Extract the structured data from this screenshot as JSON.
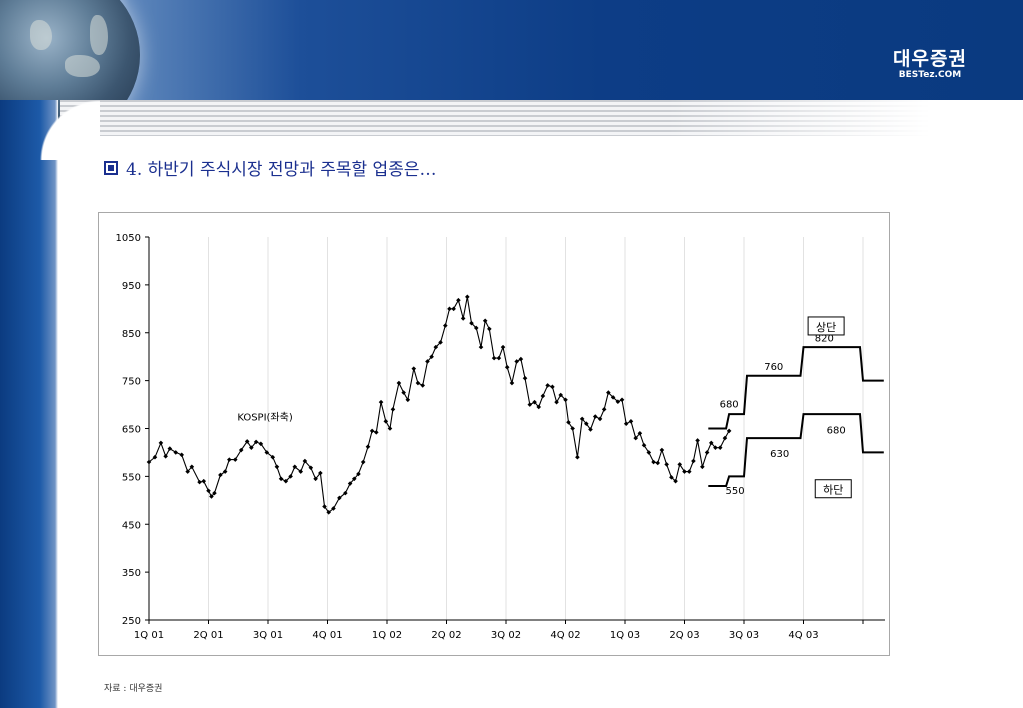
{
  "header": {
    "logo_main": "대우증권",
    "logo_sub": "BESTez.COM"
  },
  "slide": {
    "title": "4. 하반기 주식시장 전망과 주목할 업종은…",
    "source": "자료 : 대우증권"
  },
  "chart_data": {
    "type": "line",
    "ylim": [
      250,
      1050
    ],
    "yticks": [
      250,
      350,
      450,
      550,
      650,
      750,
      850,
      950,
      1050
    ],
    "xlim": [
      0,
      12.4
    ],
    "xticks": [
      {
        "label": "1Q 01",
        "pos": 0
      },
      {
        "label": "2Q 01",
        "pos": 1
      },
      {
        "label": "3Q 01",
        "pos": 2
      },
      {
        "label": "4Q 01",
        "pos": 3
      },
      {
        "label": "1Q 02",
        "pos": 4
      },
      {
        "label": "2Q 02",
        "pos": 5
      },
      {
        "label": "3Q 02",
        "pos": 6
      },
      {
        "label": "4Q 02",
        "pos": 7
      },
      {
        "label": "1Q 03",
        "pos": 8
      },
      {
        "label": "2Q 03",
        "pos": 9
      },
      {
        "label": "3Q 03",
        "pos": 10
      },
      {
        "label": "4Q 03",
        "pos": 11
      }
    ],
    "grid": "vertical",
    "series": [
      {
        "name": "KOSPI(좌축)",
        "label_pos": [
          1.95,
          667
        ],
        "points": [
          [
            0.0,
            580
          ],
          [
            0.1,
            590
          ],
          [
            0.2,
            620
          ],
          [
            0.28,
            592
          ],
          [
            0.35,
            608
          ],
          [
            0.45,
            600
          ],
          [
            0.55,
            595
          ],
          [
            0.65,
            560
          ],
          [
            0.72,
            570
          ],
          [
            0.85,
            538
          ],
          [
            0.92,
            540
          ],
          [
            1.0,
            520
          ],
          [
            1.05,
            508
          ],
          [
            1.1,
            515
          ],
          [
            1.2,
            553
          ],
          [
            1.28,
            560
          ],
          [
            1.35,
            585
          ],
          [
            1.45,
            585
          ],
          [
            1.55,
            605
          ],
          [
            1.65,
            623
          ],
          [
            1.72,
            610
          ],
          [
            1.8,
            622
          ],
          [
            1.88,
            618
          ],
          [
            1.98,
            600
          ],
          [
            2.08,
            590
          ],
          [
            2.15,
            570
          ],
          [
            2.22,
            545
          ],
          [
            2.3,
            540
          ],
          [
            2.38,
            550
          ],
          [
            2.45,
            570
          ],
          [
            2.55,
            560
          ],
          [
            2.62,
            582
          ],
          [
            2.72,
            568
          ],
          [
            2.8,
            545
          ],
          [
            2.88,
            557
          ],
          [
            2.95,
            487
          ],
          [
            3.02,
            475
          ],
          [
            3.1,
            483
          ],
          [
            3.2,
            505
          ],
          [
            3.3,
            515
          ],
          [
            3.38,
            535
          ],
          [
            3.45,
            545
          ],
          [
            3.52,
            555
          ],
          [
            3.6,
            580
          ],
          [
            3.68,
            612
          ],
          [
            3.75,
            645
          ],
          [
            3.82,
            642
          ],
          [
            3.9,
            705
          ],
          [
            3.98,
            665
          ],
          [
            4.05,
            650
          ],
          [
            4.1,
            690
          ],
          [
            4.2,
            745
          ],
          [
            4.28,
            725
          ],
          [
            4.35,
            710
          ],
          [
            4.45,
            775
          ],
          [
            4.52,
            745
          ],
          [
            4.6,
            740
          ],
          [
            4.68,
            790
          ],
          [
            4.75,
            800
          ],
          [
            4.82,
            820
          ],
          [
            4.9,
            830
          ],
          [
            4.98,
            865
          ],
          [
            5.05,
            900
          ],
          [
            5.12,
            900
          ],
          [
            5.2,
            918
          ],
          [
            5.28,
            880
          ],
          [
            5.35,
            925
          ],
          [
            5.42,
            870
          ],
          [
            5.5,
            860
          ],
          [
            5.58,
            820
          ],
          [
            5.65,
            875
          ],
          [
            5.72,
            858
          ],
          [
            5.8,
            797
          ],
          [
            5.88,
            797
          ],
          [
            5.95,
            820
          ],
          [
            6.02,
            778
          ],
          [
            6.1,
            745
          ],
          [
            6.18,
            790
          ],
          [
            6.25,
            795
          ],
          [
            6.32,
            755
          ],
          [
            6.4,
            700
          ],
          [
            6.48,
            705
          ],
          [
            6.55,
            695
          ],
          [
            6.62,
            718
          ],
          [
            6.7,
            740
          ],
          [
            6.78,
            737
          ],
          [
            6.85,
            705
          ],
          [
            6.92,
            720
          ],
          [
            7.0,
            710
          ],
          [
            7.05,
            663
          ],
          [
            7.12,
            650
          ],
          [
            7.2,
            590
          ],
          [
            7.28,
            670
          ],
          [
            7.35,
            660
          ],
          [
            7.42,
            648
          ],
          [
            7.5,
            675
          ],
          [
            7.58,
            670
          ],
          [
            7.65,
            690
          ],
          [
            7.72,
            725
          ],
          [
            7.8,
            715
          ],
          [
            7.88,
            706
          ],
          [
            7.95,
            710
          ],
          [
            8.02,
            660
          ],
          [
            8.1,
            665
          ],
          [
            8.18,
            630
          ],
          [
            8.25,
            640
          ],
          [
            8.32,
            615
          ],
          [
            8.4,
            600
          ],
          [
            8.48,
            580
          ],
          [
            8.55,
            578
          ],
          [
            8.62,
            605
          ],
          [
            8.7,
            575
          ],
          [
            8.78,
            548
          ],
          [
            8.85,
            540
          ],
          [
            8.92,
            575
          ],
          [
            9.0,
            560
          ],
          [
            9.08,
            560
          ],
          [
            9.15,
            582
          ],
          [
            9.22,
            625
          ],
          [
            9.3,
            570
          ],
          [
            9.38,
            600
          ],
          [
            9.45,
            620
          ],
          [
            9.52,
            610
          ],
          [
            9.6,
            610
          ],
          [
            9.68,
            630
          ],
          [
            9.75,
            645
          ]
        ]
      }
    ],
    "forecast_bands": [
      {
        "name": "상단",
        "segments": [
          {
            "x0": 9.4,
            "x1": 9.7,
            "y": 650
          },
          {
            "x0": 9.7,
            "x1": 10.0,
            "y": 680,
            "label": "680",
            "label_pos": [
              9.75,
              694
            ]
          },
          {
            "x0": 10.0,
            "x1": 10.95,
            "y": 760,
            "label": "760",
            "label_pos": [
              10.5,
              772
            ]
          },
          {
            "x0": 10.95,
            "x1": 11.95,
            "y": 820,
            "label": "820",
            "label_pos": [
              11.35,
              832
            ]
          },
          {
            "x0": 11.95,
            "x1": 12.35,
            "y": 750
          }
        ],
        "box_pos": [
          11.38,
          860
        ]
      },
      {
        "name": "하단",
        "segments": [
          {
            "x0": 9.4,
            "x1": 9.7,
            "y": 530
          },
          {
            "x0": 9.7,
            "x1": 10.0,
            "y": 550,
            "label": "550",
            "label_pos": [
              9.85,
              513
            ]
          },
          {
            "x0": 10.0,
            "x1": 10.95,
            "y": 630,
            "label": "630",
            "label_pos": [
              10.6,
              590
            ]
          },
          {
            "x0": 10.95,
            "x1": 11.95,
            "y": 680,
            "label": "680",
            "label_pos": [
              11.55,
              640
            ]
          },
          {
            "x0": 11.95,
            "x1": 12.35,
            "y": 600
          }
        ],
        "box_pos": [
          11.5,
          520
        ]
      }
    ]
  }
}
